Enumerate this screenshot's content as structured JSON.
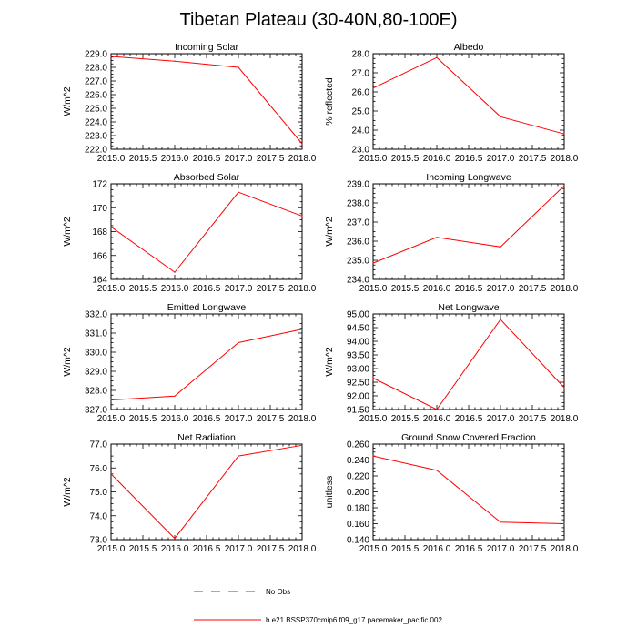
{
  "figure": {
    "title": "Tibetan Plateau (30-40N,80-100E)",
    "line_color": "#ff0000",
    "obs_color": "#4a4a9e"
  },
  "legend": {
    "obs_label": "No Obs",
    "model_label": "b.e21.BSSP370cmip6.f09_g17.pacemaker_pacific.002"
  },
  "chart_data": [
    {
      "type": "line",
      "title": "Incoming Solar",
      "ylabel": "W/m^2",
      "xlabel": "",
      "x": [
        2015.0,
        2016.0,
        2017.0,
        2018.0
      ],
      "series": [
        {
          "name": "b.e21.BSSP370cmip6.f09_g17.pacemaker_pacific.002",
          "values": [
            228.8,
            228.45,
            228.0,
            222.4
          ]
        }
      ],
      "xlim": [
        2015.0,
        2018.0
      ],
      "ylim": [
        222.0,
        229.0
      ],
      "xticks": [
        "2015.0",
        "2015.5",
        "2016.0",
        "2016.5",
        "2017.0",
        "2017.5",
        "2018.0"
      ],
      "yticks": [
        "222.0",
        "223.0",
        "224.0",
        "225.0",
        "226.0",
        "227.0",
        "228.0",
        "229.0"
      ],
      "ytick_values": [
        222.0,
        223.0,
        224.0,
        225.0,
        226.0,
        227.0,
        228.0,
        229.0
      ]
    },
    {
      "type": "line",
      "title": "Albedo",
      "ylabel": "% reflected",
      "xlabel": "",
      "x": [
        2015.0,
        2016.0,
        2017.0,
        2018.0
      ],
      "series": [
        {
          "name": "b.e21.BSSP370cmip6.f09_g17.pacemaker_pacific.002",
          "values": [
            26.2,
            27.8,
            24.7,
            23.8
          ]
        }
      ],
      "xlim": [
        2015.0,
        2018.0
      ],
      "ylim": [
        23.0,
        28.0
      ],
      "xticks": [
        "2015.0",
        "2015.5",
        "2016.0",
        "2016.5",
        "2017.0",
        "2017.5",
        "2018.0"
      ],
      "yticks": [
        "23.0",
        "24.0",
        "25.0",
        "26.0",
        "27.0",
        "28.0"
      ],
      "ytick_values": [
        23.0,
        24.0,
        25.0,
        26.0,
        27.0,
        28.0
      ]
    },
    {
      "type": "line",
      "title": "Absorbed Solar",
      "ylabel": "W/m^2",
      "xlabel": "",
      "x": [
        2015.0,
        2016.0,
        2017.0,
        2018.0
      ],
      "series": [
        {
          "name": "b.e21.BSSP370cmip6.f09_g17.pacemaker_pacific.002",
          "values": [
            168.4,
            164.6,
            171.3,
            169.3
          ]
        }
      ],
      "xlim": [
        2015.0,
        2018.0
      ],
      "ylim": [
        164.0,
        172.0
      ],
      "xticks": [
        "2015.0",
        "2015.5",
        "2016.0",
        "2016.5",
        "2017.0",
        "2017.5",
        "2018.0"
      ],
      "yticks": [
        "164",
        "166",
        "168",
        "170",
        "172"
      ],
      "ytick_values": [
        164,
        166,
        168,
        170,
        172
      ]
    },
    {
      "type": "line",
      "title": "Incoming Longwave",
      "ylabel": "W/m^2",
      "xlabel": "",
      "x": [
        2015.0,
        2016.0,
        2017.0,
        2018.0
      ],
      "series": [
        {
          "name": "b.e21.BSSP370cmip6.f09_g17.pacemaker_pacific.002",
          "values": [
            234.85,
            236.2,
            235.7,
            238.9
          ]
        }
      ],
      "xlim": [
        2015.0,
        2018.0
      ],
      "ylim": [
        234.0,
        239.0
      ],
      "xticks": [
        "2015.0",
        "2015.5",
        "2016.0",
        "2016.5",
        "2017.0",
        "2017.5",
        "2018.0"
      ],
      "yticks": [
        "234.0",
        "235.0",
        "236.0",
        "237.0",
        "238.0",
        "239.0"
      ],
      "ytick_values": [
        234.0,
        235.0,
        236.0,
        237.0,
        238.0,
        239.0
      ]
    },
    {
      "type": "line",
      "title": "Emitted Longwave",
      "ylabel": "W/m^2",
      "xlabel": "",
      "x": [
        2015.0,
        2016.0,
        2017.0,
        2018.0
      ],
      "series": [
        {
          "name": "b.e21.BSSP370cmip6.f09_g17.pacemaker_pacific.002",
          "values": [
            327.5,
            327.7,
            330.5,
            331.2
          ]
        }
      ],
      "xlim": [
        2015.0,
        2018.0
      ],
      "ylim": [
        327.0,
        332.0
      ],
      "xticks": [
        "2015.0",
        "2015.5",
        "2016.0",
        "2016.5",
        "2017.0",
        "2017.5",
        "2018.0"
      ],
      "yticks": [
        "327.0",
        "328.0",
        "329.0",
        "330.0",
        "331.0",
        "332.0"
      ],
      "ytick_values": [
        327.0,
        328.0,
        329.0,
        330.0,
        331.0,
        332.0
      ]
    },
    {
      "type": "line",
      "title": "Net Longwave",
      "ylabel": "W/m^2",
      "xlabel": "",
      "x": [
        2015.0,
        2016.0,
        2017.0,
        2018.0
      ],
      "series": [
        {
          "name": "b.e21.BSSP370cmip6.f09_g17.pacemaker_pacific.002",
          "values": [
            92.65,
            91.5,
            94.8,
            92.3
          ]
        }
      ],
      "xlim": [
        2015.0,
        2018.0
      ],
      "ylim": [
        91.5,
        95.0
      ],
      "xticks": [
        "2015.0",
        "2015.5",
        "2016.0",
        "2016.5",
        "2017.0",
        "2017.5",
        "2018.0"
      ],
      "yticks": [
        "91.50",
        "92.00",
        "92.50",
        "93.00",
        "93.50",
        "94.00",
        "94.50",
        "95.00"
      ],
      "ytick_values": [
        91.5,
        92.0,
        92.5,
        93.0,
        93.5,
        94.0,
        94.5,
        95.0
      ]
    },
    {
      "type": "line",
      "title": "Net Radiation",
      "ylabel": "W/m^2",
      "xlabel": "",
      "x": [
        2015.0,
        2016.0,
        2017.0,
        2018.0
      ],
      "series": [
        {
          "name": "b.e21.BSSP370cmip6.f09_g17.pacemaker_pacific.002",
          "values": [
            75.75,
            73.05,
            76.5,
            76.95
          ]
        }
      ],
      "xlim": [
        2015.0,
        2018.0
      ],
      "ylim": [
        73.0,
        77.0
      ],
      "xticks": [
        "2015.0",
        "2015.5",
        "2016.0",
        "2016.5",
        "2017.0",
        "2017.5",
        "2018.0"
      ],
      "yticks": [
        "73.0",
        "74.0",
        "75.0",
        "76.0",
        "77.0"
      ],
      "ytick_values": [
        73.0,
        74.0,
        75.0,
        76.0,
        77.0
      ]
    },
    {
      "type": "line",
      "title": "Ground Snow Covered Fraction",
      "ylabel": "unitless",
      "xlabel": "",
      "x": [
        2015.0,
        2016.0,
        2017.0,
        2018.0
      ],
      "series": [
        {
          "name": "b.e21.BSSP370cmip6.f09_g17.pacemaker_pacific.002",
          "values": [
            0.245,
            0.227,
            0.162,
            0.16
          ]
        }
      ],
      "xlim": [
        2015.0,
        2018.0
      ],
      "ylim": [
        0.14,
        0.26
      ],
      "xticks": [
        "2015.0",
        "2015.5",
        "2016.0",
        "2016.5",
        "2017.0",
        "2017.5",
        "2018.0"
      ],
      "yticks": [
        "0.140",
        "0.160",
        "0.180",
        "0.200",
        "0.220",
        "0.240",
        "0.260"
      ],
      "ytick_values": [
        0.14,
        0.16,
        0.18,
        0.2,
        0.22,
        0.24,
        0.26
      ]
    }
  ]
}
